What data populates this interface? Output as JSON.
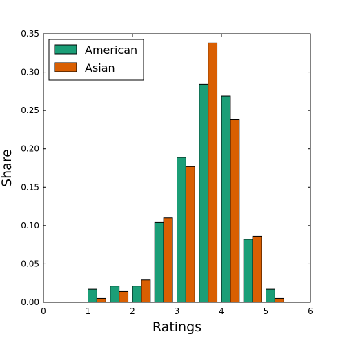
{
  "chart_data": {
    "type": "bar",
    "xlabel": "Ratings",
    "ylabel": "Share",
    "xlim": [
      0,
      6
    ],
    "ylim": [
      0,
      0.35
    ],
    "xticks": [
      "0",
      "1",
      "2",
      "3",
      "4",
      "5",
      "6"
    ],
    "yticks": [
      "0.00",
      "0.05",
      "0.10",
      "0.15",
      "0.20",
      "0.25",
      "0.30",
      "0.35"
    ],
    "bar_width": 0.2,
    "bin_starts": [
      1.0,
      1.5,
      2.0,
      2.5,
      3.0,
      3.5,
      4.0,
      4.5,
      5.0
    ],
    "legend_position": "top-left",
    "grid": false,
    "series": [
      {
        "name": "American",
        "color": "#1b9e77",
        "values": [
          0.017,
          0.021,
          0.021,
          0.104,
          0.189,
          0.284,
          0.269,
          0.082,
          0.017
        ]
      },
      {
        "name": "Asian",
        "color": "#d95f02",
        "values": [
          0.005,
          0.014,
          0.029,
          0.11,
          0.177,
          0.338,
          0.238,
          0.086,
          0.005
        ]
      }
    ]
  }
}
